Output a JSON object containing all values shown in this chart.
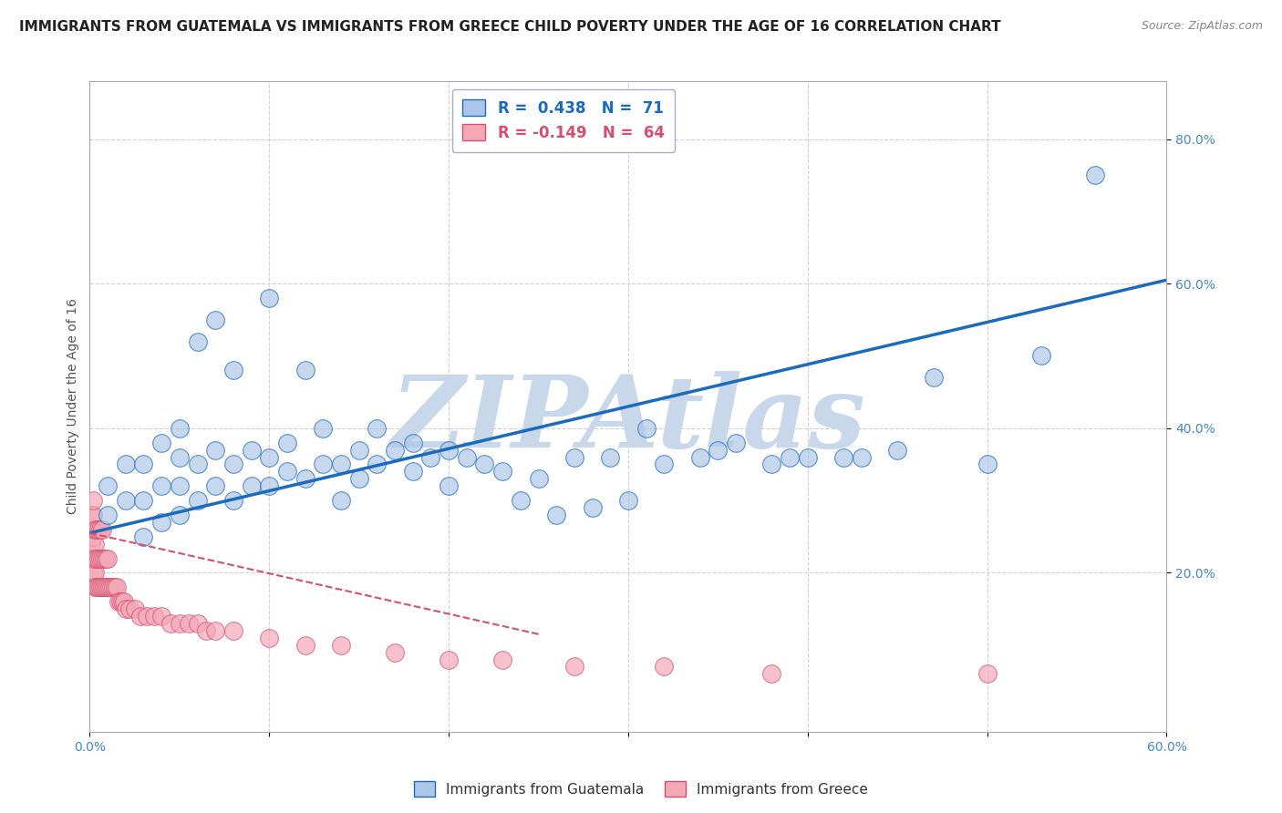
{
  "title": "IMMIGRANTS FROM GUATEMALA VS IMMIGRANTS FROM GREECE CHILD POVERTY UNDER THE AGE OF 16 CORRELATION CHART",
  "source_text": "Source: ZipAtlas.com",
  "ylabel": "Child Poverty Under the Age of 16",
  "xlim": [
    0.0,
    0.6
  ],
  "ylim": [
    -0.02,
    0.88
  ],
  "xticks": [
    0.0,
    0.1,
    0.2,
    0.3,
    0.4,
    0.5,
    0.6
  ],
  "ytick_labels_right": [
    "20.0%",
    "40.0%",
    "60.0%",
    "80.0%"
  ],
  "ytick_vals_right": [
    0.2,
    0.4,
    0.6,
    0.8
  ],
  "R_guatemala": 0.438,
  "N_guatemala": 71,
  "R_greece": -0.149,
  "N_greece": 64,
  "color_guatemala": "#aec6e8",
  "color_greece": "#f4a8b8",
  "trendline_guatemala_color": "#1a6bbf",
  "trendline_greece_color": "#d45070",
  "watermark_text": "ZIPAtlas",
  "watermark_color": "#c8d8ea",
  "title_fontsize": 11,
  "axis_label_fontsize": 10,
  "tick_fontsize": 10,
  "guatemala_trendline_x0": 0.0,
  "guatemala_trendline_y0": 0.255,
  "guatemala_trendline_x1": 0.6,
  "guatemala_trendline_y1": 0.605,
  "greece_trendline_x0": 0.0,
  "greece_trendline_y0": 0.255,
  "greece_trendline_x1": 0.25,
  "greece_trendline_y1": 0.115,
  "guatemala_scatter_x": [
    0.01,
    0.01,
    0.02,
    0.02,
    0.03,
    0.03,
    0.03,
    0.04,
    0.04,
    0.04,
    0.05,
    0.05,
    0.05,
    0.05,
    0.06,
    0.06,
    0.06,
    0.07,
    0.07,
    0.07,
    0.08,
    0.08,
    0.08,
    0.09,
    0.09,
    0.1,
    0.1,
    0.1,
    0.11,
    0.11,
    0.12,
    0.12,
    0.13,
    0.13,
    0.14,
    0.14,
    0.15,
    0.15,
    0.16,
    0.16,
    0.17,
    0.18,
    0.18,
    0.19,
    0.2,
    0.2,
    0.21,
    0.22,
    0.23,
    0.24,
    0.25,
    0.26,
    0.27,
    0.28,
    0.29,
    0.3,
    0.31,
    0.32,
    0.34,
    0.35,
    0.36,
    0.38,
    0.39,
    0.4,
    0.42,
    0.43,
    0.45,
    0.47,
    0.5,
    0.53,
    0.56
  ],
  "guatemala_scatter_y": [
    0.28,
    0.32,
    0.3,
    0.35,
    0.25,
    0.3,
    0.35,
    0.27,
    0.32,
    0.38,
    0.28,
    0.32,
    0.36,
    0.4,
    0.3,
    0.35,
    0.52,
    0.32,
    0.37,
    0.55,
    0.3,
    0.35,
    0.48,
    0.32,
    0.37,
    0.32,
    0.36,
    0.58,
    0.34,
    0.38,
    0.33,
    0.48,
    0.35,
    0.4,
    0.3,
    0.35,
    0.33,
    0.37,
    0.35,
    0.4,
    0.37,
    0.34,
    0.38,
    0.36,
    0.32,
    0.37,
    0.36,
    0.35,
    0.34,
    0.3,
    0.33,
    0.28,
    0.36,
    0.29,
    0.36,
    0.3,
    0.4,
    0.35,
    0.36,
    0.37,
    0.38,
    0.35,
    0.36,
    0.36,
    0.36,
    0.36,
    0.37,
    0.47,
    0.35,
    0.5,
    0.75
  ],
  "greece_scatter_x": [
    0.001,
    0.001,
    0.001,
    0.002,
    0.002,
    0.002,
    0.002,
    0.002,
    0.003,
    0.003,
    0.003,
    0.003,
    0.003,
    0.004,
    0.004,
    0.004,
    0.005,
    0.005,
    0.005,
    0.006,
    0.006,
    0.006,
    0.007,
    0.007,
    0.007,
    0.008,
    0.008,
    0.009,
    0.009,
    0.01,
    0.01,
    0.011,
    0.012,
    0.013,
    0.014,
    0.015,
    0.016,
    0.017,
    0.018,
    0.019,
    0.02,
    0.022,
    0.025,
    0.028,
    0.032,
    0.036,
    0.04,
    0.045,
    0.05,
    0.055,
    0.06,
    0.065,
    0.07,
    0.08,
    0.1,
    0.12,
    0.14,
    0.17,
    0.2,
    0.23,
    0.27,
    0.32,
    0.38,
    0.5
  ],
  "greece_scatter_y": [
    0.24,
    0.22,
    0.28,
    0.2,
    0.25,
    0.22,
    0.28,
    0.3,
    0.2,
    0.24,
    0.18,
    0.22,
    0.26,
    0.18,
    0.22,
    0.26,
    0.18,
    0.22,
    0.26,
    0.18,
    0.22,
    0.26,
    0.18,
    0.22,
    0.26,
    0.18,
    0.22,
    0.18,
    0.22,
    0.18,
    0.22,
    0.18,
    0.18,
    0.18,
    0.18,
    0.18,
    0.16,
    0.16,
    0.16,
    0.16,
    0.15,
    0.15,
    0.15,
    0.14,
    0.14,
    0.14,
    0.14,
    0.13,
    0.13,
    0.13,
    0.13,
    0.12,
    0.12,
    0.12,
    0.11,
    0.1,
    0.1,
    0.09,
    0.08,
    0.08,
    0.07,
    0.07,
    0.06,
    0.06
  ]
}
